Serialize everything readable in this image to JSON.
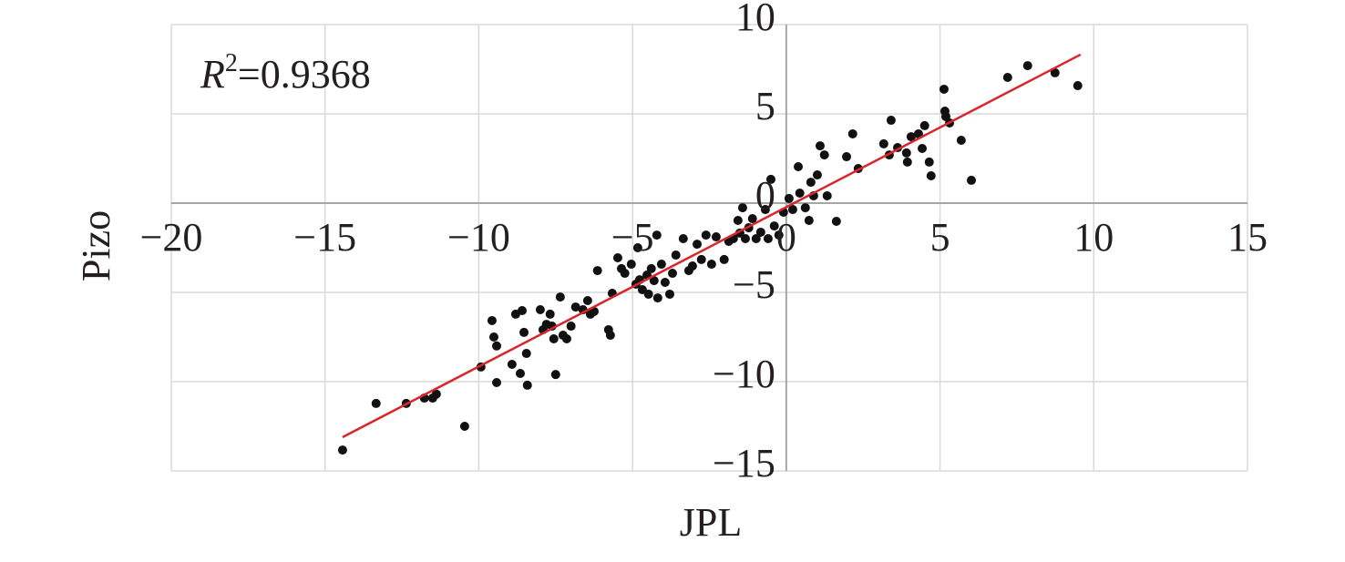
{
  "chart_data": {
    "type": "scatter",
    "xlabel": "JPL",
    "ylabel": "Pizo",
    "annotation": {
      "symbol": "R",
      "superscript": "2",
      "text": "=0.9368"
    },
    "xlim": [
      -20,
      15
    ],
    "ylim": [
      -15,
      10
    ],
    "xticks": [
      {
        "value": -20,
        "label": "−20"
      },
      {
        "value": -15,
        "label": "−15"
      },
      {
        "value": -10,
        "label": "−10"
      },
      {
        "value": -5,
        "label": "−5"
      },
      0,
      5,
      10,
      15
    ],
    "yticks": [
      10,
      5,
      0,
      {
        "value": -5,
        "label": "−5"
      },
      {
        "value": -10,
        "label": "−10"
      },
      {
        "value": -15,
        "label": "−15"
      }
    ],
    "grid": true,
    "color": "#111111",
    "x": [
      -14.43,
      -13.34,
      -12.36,
      -11.77,
      -11.5,
      -11.38,
      -10.46,
      -9.93,
      -9.57,
      -9.51,
      -9.42,
      -9.42,
      -8.92,
      -8.8,
      -8.65,
      -8.59,
      -8.53,
      -8.45,
      -8.42,
      -8.0,
      -7.91,
      -7.8,
      -7.68,
      -7.62,
      -7.56,
      -7.5,
      -7.35,
      -7.26,
      -7.14,
      -7.0,
      -6.85,
      -6.61,
      -6.46,
      -6.37,
      -6.25,
      -6.14,
      -5.78,
      -5.72,
      -5.66,
      -5.48,
      -5.36,
      -5.25,
      -5.04,
      -4.89,
      -4.83,
      -4.77,
      -4.68,
      -4.53,
      -4.48,
      -4.39,
      -4.3,
      -4.21,
      -4.18,
      -4.06,
      -3.94,
      -3.79,
      -3.7,
      -3.59,
      -3.35,
      -3.17,
      -3.05,
      -2.9,
      -2.76,
      -2.61,
      -2.43,
      -2.28,
      -2.02,
      -1.87,
      -1.72,
      -1.57,
      -1.51,
      -1.42,
      -1.33,
      -1.22,
      -1.1,
      -0.98,
      -0.83,
      -0.68,
      -0.59,
      -0.5,
      -0.39,
      -0.24,
      -0.09,
      0.09,
      0.21,
      0.39,
      0.44,
      0.62,
      0.74,
      0.8,
      0.89,
      1.01,
      1.1,
      1.24,
      1.33,
      1.63,
      1.96,
      2.16,
      2.34,
      3.17,
      3.35,
      3.41,
      3.62,
      3.91,
      3.94,
      4.06,
      4.3,
      4.42,
      4.5,
      4.65,
      4.71,
      5.13,
      5.16,
      5.19,
      5.31,
      5.69,
      6.02,
      7.2,
      7.85,
      8.74,
      9.48
    ],
    "values": [
      -13.83,
      -11.22,
      -11.22,
      -10.92,
      -10.92,
      -10.7,
      -12.5,
      -9.18,
      -6.58,
      -7.5,
      -8.0,
      -10.05,
      -9.03,
      -6.22,
      -9.54,
      -6.02,
      -7.24,
      -8.42,
      -10.2,
      -5.97,
      -7.09,
      -6.79,
      -6.22,
      -6.89,
      -7.6,
      -9.6,
      -5.26,
      -7.4,
      -7.6,
      -6.89,
      -5.82,
      -5.97,
      -5.46,
      -6.22,
      -6.07,
      -3.78,
      -7.09,
      -7.4,
      -5.05,
      -3.06,
      -3.67,
      -3.93,
      -3.42,
      -4.54,
      -2.5,
      -4.29,
      -4.85,
      -4.03,
      -5.1,
      -3.67,
      -4.34,
      -1.79,
      -5.31,
      -3.42,
      -4.44,
      -5.1,
      -3.93,
      -2.91,
      -1.99,
      -3.78,
      -3.52,
      -2.3,
      -3.16,
      -1.79,
      -3.42,
      -1.89,
      -3.16,
      -2.14,
      -1.99,
      -0.97,
      -1.68,
      -0.26,
      -1.99,
      -1.38,
      -0.87,
      -1.99,
      -1.63,
      -0.36,
      -1.99,
      1.33,
      -1.28,
      -1.79,
      -0.51,
      0.26,
      -0.36,
      2.04,
      0.56,
      -0.26,
      -0.97,
      1.17,
      0.41,
      1.58,
      3.21,
      2.7,
      0.41,
      -1.02,
      2.6,
      3.88,
      1.94,
      3.32,
      2.7,
      4.64,
      3.11,
      2.81,
      2.3,
      3.72,
      3.88,
      3.06,
      4.34,
      2.3,
      1.53,
      6.38,
      5.15,
      4.85,
      4.49,
      3.52,
      1.28,
      7.04,
      7.7,
      7.3,
      6.58
    ],
    "trendline": {
      "color": "#d9262b",
      "x": [
        -14.43,
        9.57
      ],
      "y": [
        -13.11,
        8.32
      ]
    }
  }
}
